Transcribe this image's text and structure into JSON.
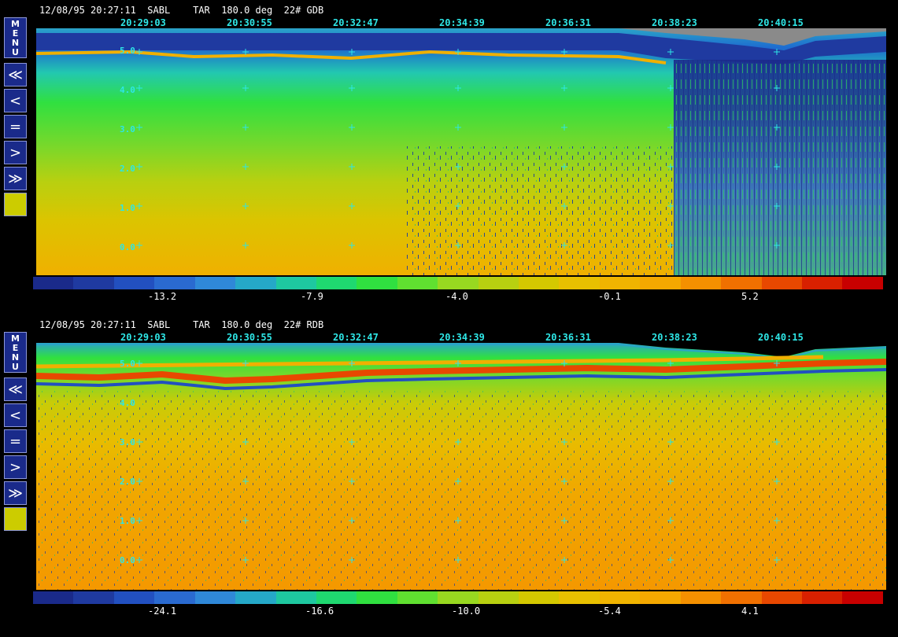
{
  "panels": [
    {
      "header": "12/08/95 20:27:11  SABL    TAR  180.0 deg  22# GDB",
      "times": [
        "20:29:03",
        "20:30:55",
        "20:32:47",
        "20:34:39",
        "20:36:31",
        "20:38:23",
        "20:40:15"
      ],
      "scale_labels": [
        "5.0",
        "4.0",
        "3.0",
        "2.0",
        "1.0",
        "0.0"
      ],
      "colorbar_labels": [
        "-13.2",
        "-7.9",
        "-4.0",
        "-0.1",
        "5.2"
      ],
      "colors": [
        "#1a2a8a",
        "#1f3aa0",
        "#2250c0",
        "#2a6ad0",
        "#2f88d8",
        "#25a8c8",
        "#1ec8a0",
        "#1fd870",
        "#30e040",
        "#60e030",
        "#98d820",
        "#b8d010",
        "#d4c800",
        "#e8c000",
        "#f0b400",
        "#f4a800",
        "#f49000",
        "#f07000",
        "#e84800",
        "#d82000",
        "#c80000"
      ]
    },
    {
      "header": "12/08/95 20:27:11  SABL    TAR  180.0 deg  22# RDB",
      "times": [
        "20:29:03",
        "20:30:55",
        "20:32:47",
        "20:34:39",
        "20:36:31",
        "20:38:23",
        "20:40:15"
      ],
      "scale_labels": [
        "5.0",
        "4.0",
        "3.0",
        "2.0",
        "1.0",
        "0.0"
      ],
      "colorbar_labels": [
        "-24.1",
        "-16.6",
        "-10.0",
        "-5.4",
        "4.1"
      ],
      "colors": [
        "#1a2a8a",
        "#1f3aa0",
        "#2250c0",
        "#2a6ad0",
        "#2f88d8",
        "#25a8c8",
        "#1ec8a0",
        "#1fd870",
        "#30e040",
        "#60e030",
        "#98d820",
        "#b8d010",
        "#d4c800",
        "#e8c000",
        "#f0b400",
        "#f4a800",
        "#f49000",
        "#f07000",
        "#e84800",
        "#d82000",
        "#c80000"
      ]
    }
  ],
  "toolbar": {
    "menu_label": "MENU",
    "fast_back_label": "≪",
    "back_label": "<",
    "equal_label": "=",
    "forward_label": ">",
    "fast_forward_label": "≫",
    "swatch_color": "#cccc00"
  }
}
